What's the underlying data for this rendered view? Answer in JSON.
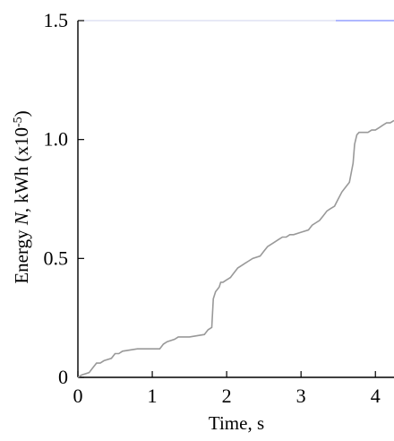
{
  "chart_data": {
    "type": "line",
    "xlabel": "Time, s",
    "ylabel_prefix": "Energy ",
    "ylabel_var": "N",
    "ylabel_unit": ", kWh (x10",
    "ylabel_exp": "-5",
    "ylabel_close": ")",
    "xlim": [
      0,
      4.25
    ],
    "ylim": [
      0,
      1.5
    ],
    "x_ticks": [
      0,
      1,
      2,
      3,
      4
    ],
    "x_tick_labels": [
      "0",
      "1",
      "2",
      "3",
      "4"
    ],
    "y_ticks": [
      0,
      0.5,
      1.0,
      1.5
    ],
    "y_tick_labels": [
      "0",
      "0.5",
      "1.0",
      "1.5"
    ],
    "grid": false,
    "colors": {
      "line": "#999999",
      "axis": "#000000",
      "top_border": "#cfd3ee",
      "top_accent": "#7f8dff"
    },
    "series": [
      {
        "x": [
          0,
          0.05,
          0.15,
          0.2,
          0.25,
          0.3,
          0.35,
          0.45,
          0.5,
          0.55,
          0.6,
          0.8,
          0.9,
          1.1,
          1.15,
          1.2,
          1.3,
          1.35,
          1.45,
          1.5,
          1.7,
          1.75,
          1.8,
          1.82,
          1.85,
          1.9,
          1.92,
          1.95,
          2.0,
          2.05,
          2.1,
          2.15,
          2.2,
          2.25,
          2.3,
          2.35,
          2.45,
          2.5,
          2.55,
          2.6,
          2.65,
          2.7,
          2.75,
          2.8,
          2.85,
          2.9,
          3.0,
          3.1,
          3.15,
          3.2,
          3.25,
          3.3,
          3.35,
          3.4,
          3.45,
          3.5,
          3.55,
          3.6,
          3.65,
          3.7,
          3.72,
          3.75,
          3.78,
          3.8,
          3.85,
          3.9,
          3.95,
          4.0,
          4.05,
          4.1,
          4.15,
          4.2,
          4.25
        ],
        "y": [
          0,
          0.01,
          0.02,
          0.04,
          0.06,
          0.06,
          0.07,
          0.08,
          0.1,
          0.1,
          0.11,
          0.12,
          0.12,
          0.12,
          0.14,
          0.15,
          0.16,
          0.17,
          0.17,
          0.17,
          0.18,
          0.2,
          0.21,
          0.33,
          0.36,
          0.38,
          0.4,
          0.4,
          0.41,
          0.42,
          0.44,
          0.46,
          0.47,
          0.48,
          0.49,
          0.5,
          0.51,
          0.53,
          0.55,
          0.56,
          0.57,
          0.58,
          0.59,
          0.59,
          0.6,
          0.6,
          0.61,
          0.62,
          0.64,
          0.65,
          0.66,
          0.68,
          0.7,
          0.71,
          0.72,
          0.75,
          0.78,
          0.8,
          0.82,
          0.9,
          0.98,
          1.02,
          1.03,
          1.03,
          1.03,
          1.03,
          1.04,
          1.04,
          1.05,
          1.06,
          1.07,
          1.07,
          1.08
        ]
      }
    ]
  }
}
